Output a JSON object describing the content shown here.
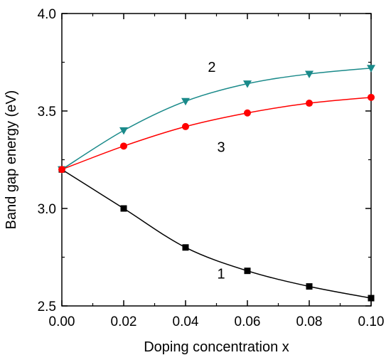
{
  "chart_data": {
    "type": "line",
    "title": "",
    "xlabel": "Doping concentration x",
    "ylabel": "Band gap energy (eV)",
    "xlim": [
      0.0,
      0.1
    ],
    "ylim": [
      2.5,
      4.0
    ],
    "x_ticks": [
      "0.00",
      "0.02",
      "0.04",
      "0.06",
      "0.08",
      "0.10"
    ],
    "y_ticks": [
      "2.5",
      "3.0",
      "3.5",
      "4.0"
    ],
    "grid": false,
    "legend": "none",
    "series": [
      {
        "name": "1",
        "marker": "square",
        "color": "#000000",
        "x": [
          0.0,
          0.02,
          0.04,
          0.06,
          0.08,
          0.1
        ],
        "y": [
          3.2,
          3.0,
          2.8,
          2.68,
          2.6,
          2.54
        ]
      },
      {
        "name": "2",
        "marker": "triangle-down",
        "color": "#1a8a8a",
        "x": [
          0.0,
          0.02,
          0.04,
          0.06,
          0.08,
          0.1
        ],
        "y": [
          3.2,
          3.4,
          3.55,
          3.64,
          3.69,
          3.72
        ]
      },
      {
        "name": "3",
        "marker": "circle",
        "color": "#ff0000",
        "x": [
          0.0,
          0.02,
          0.04,
          0.06,
          0.08,
          0.1
        ],
        "y": [
          3.2,
          3.32,
          3.42,
          3.49,
          3.54,
          3.57
        ]
      }
    ],
    "series_labels": [
      {
        "text": "1",
        "x": 0.0515,
        "y": 2.64
      },
      {
        "text": "2",
        "x": 0.0485,
        "y": 3.7
      },
      {
        "text": "3",
        "x": 0.0515,
        "y": 3.29
      }
    ]
  }
}
